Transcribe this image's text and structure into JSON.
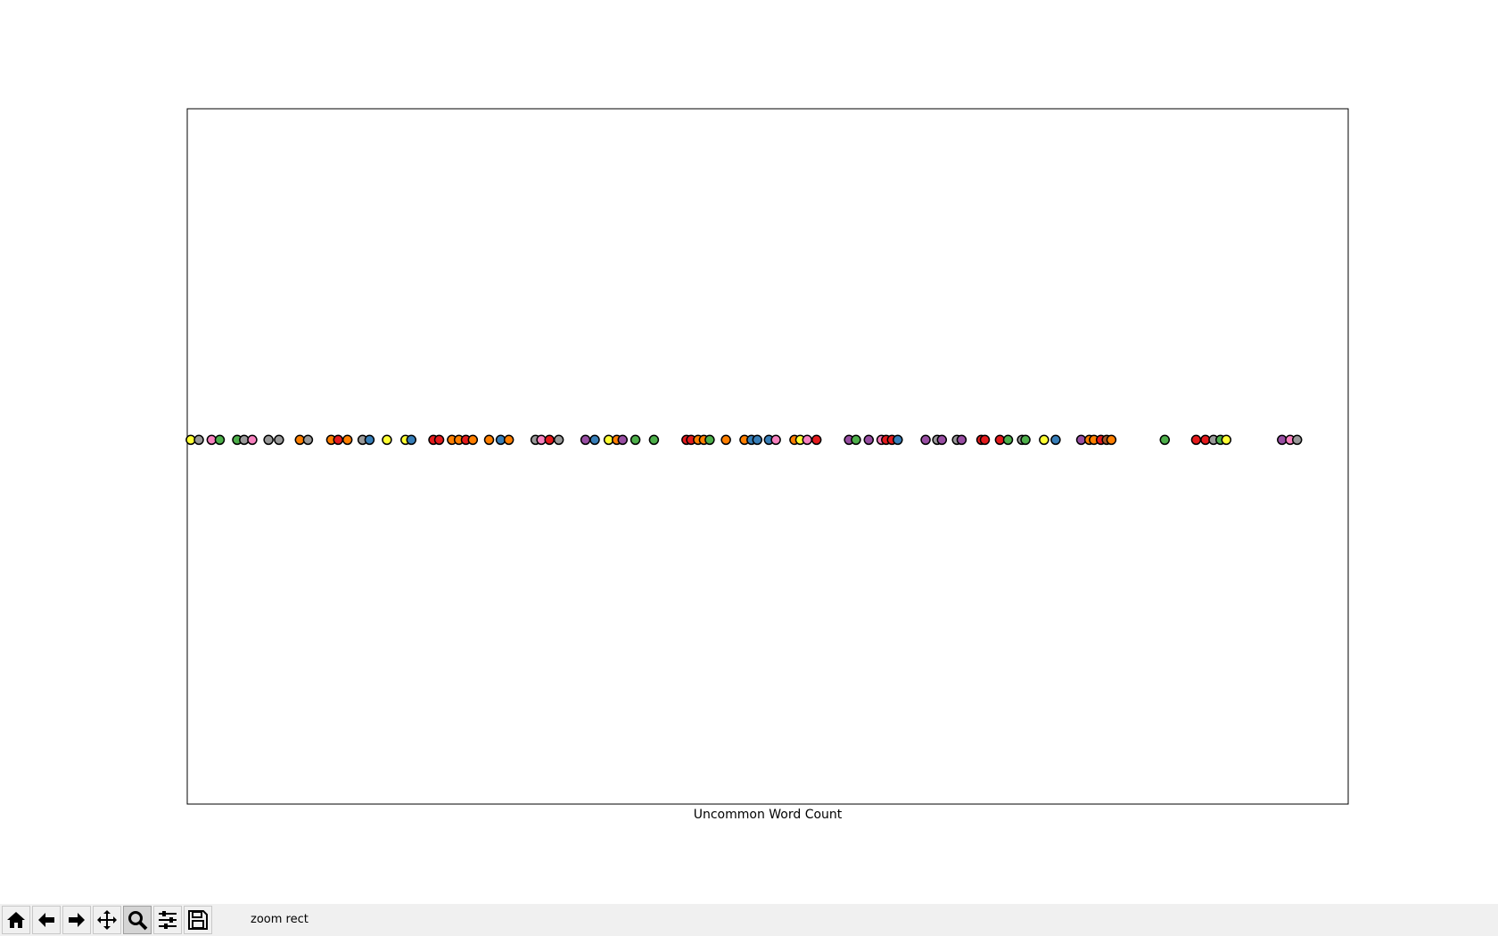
{
  "chart_data": {
    "type": "scatter",
    "xlabel": "Uncommon Word Count",
    "xlim": [
      0,
      100
    ],
    "ylim": [
      -1.1,
      1
    ],
    "grid": false,
    "x": [
      0.3,
      1.0,
      2.1,
      2.8,
      4.3,
      4.9,
      5.6,
      7.0,
      7.9,
      9.7,
      10.4,
      12.4,
      13.0,
      13.8,
      15.1,
      15.7,
      17.2,
      18.8,
      19.3,
      21.2,
      21.7,
      22.8,
      23.4,
      24.0,
      24.6,
      26.0,
      27.0,
      27.7,
      30.0,
      30.5,
      31.2,
      32.0,
      34.3,
      35.1,
      36.3,
      37.0,
      37.5,
      38.6,
      40.2,
      43.0,
      43.4,
      44.0,
      44.5,
      45.0,
      46.4,
      48.0,
      48.6,
      49.1,
      50.1,
      50.7,
      52.3,
      52.8,
      53.4,
      54.2,
      57.0,
      57.6,
      58.7,
      59.8,
      60.2,
      60.7,
      61.2,
      63.6,
      64.6,
      65.0,
      66.3,
      66.7,
      68.4,
      68.7,
      70.0,
      70.7,
      71.9,
      72.2,
      73.8,
      74.8,
      77.0,
      77.7,
      78.1,
      78.7,
      79.2,
      79.6,
      84.2,
      86.9,
      87.7,
      88.4,
      89.0,
      89.5,
      94.3,
      95.0,
      95.6
    ],
    "values": [
      0,
      0,
      0,
      0,
      0,
      0,
      0,
      0,
      0,
      0,
      0,
      0,
      0,
      0,
      0,
      0,
      0,
      0,
      0,
      0,
      0,
      0,
      0,
      0,
      0,
      0,
      0,
      0,
      0,
      0,
      0,
      0,
      0,
      0,
      0,
      0,
      0,
      0,
      0,
      0,
      0,
      0,
      0,
      0,
      0,
      0,
      0,
      0,
      0,
      0,
      0,
      0,
      0,
      0,
      0,
      0,
      0,
      0,
      0,
      0,
      0,
      0,
      0,
      0,
      0,
      0,
      0,
      0,
      0,
      0,
      0,
      0,
      0,
      0,
      0,
      0,
      0,
      0,
      0,
      0,
      0,
      0,
      0,
      0,
      0,
      0,
      0,
      0,
      0
    ],
    "colors": [
      "#ffff33",
      "#999999",
      "#f781bf",
      "#4daf4a",
      "#4daf4a",
      "#999999",
      "#f781bf",
      "#999999",
      "#999999",
      "#ff7f00",
      "#999999",
      "#ff7f00",
      "#e41a1c",
      "#ff7f00",
      "#999999",
      "#377eb8",
      "#ffff33",
      "#ffff33",
      "#377eb8",
      "#e41a1c",
      "#e41a1c",
      "#ff7f00",
      "#ff7f00",
      "#e41a1c",
      "#ff7f00",
      "#ff7f00",
      "#377eb8",
      "#ff7f00",
      "#999999",
      "#f781bf",
      "#e41a1c",
      "#999999",
      "#984ea3",
      "#377eb8",
      "#ffff33",
      "#ff7f00",
      "#984ea3",
      "#4daf4a",
      "#4daf4a",
      "#e41a1c",
      "#e41a1c",
      "#ff7f00",
      "#ff7f00",
      "#4daf4a",
      "#ff7f00",
      "#ff7f00",
      "#377eb8",
      "#377eb8",
      "#377eb8",
      "#f781bf",
      "#ff7f00",
      "#ffff33",
      "#f781bf",
      "#e41a1c",
      "#984ea3",
      "#4daf4a",
      "#984ea3",
      "#f781bf",
      "#e41a1c",
      "#e41a1c",
      "#377eb8",
      "#984ea3",
      "#999999",
      "#984ea3",
      "#999999",
      "#984ea3",
      "#e41a1c",
      "#e41a1c",
      "#e41a1c",
      "#4daf4a",
      "#999999",
      "#4daf4a",
      "#ffff33",
      "#377eb8",
      "#984ea3",
      "#ff7f00",
      "#ff7f00",
      "#e41a1c",
      "#a65628",
      "#ff7f00",
      "#4daf4a",
      "#e41a1c",
      "#e41a1c",
      "#999999",
      "#4daf4a",
      "#ffff33",
      "#984ea3",
      "#f781bf",
      "#999999"
    ]
  },
  "toolbar": {
    "status": "zoom rect"
  }
}
